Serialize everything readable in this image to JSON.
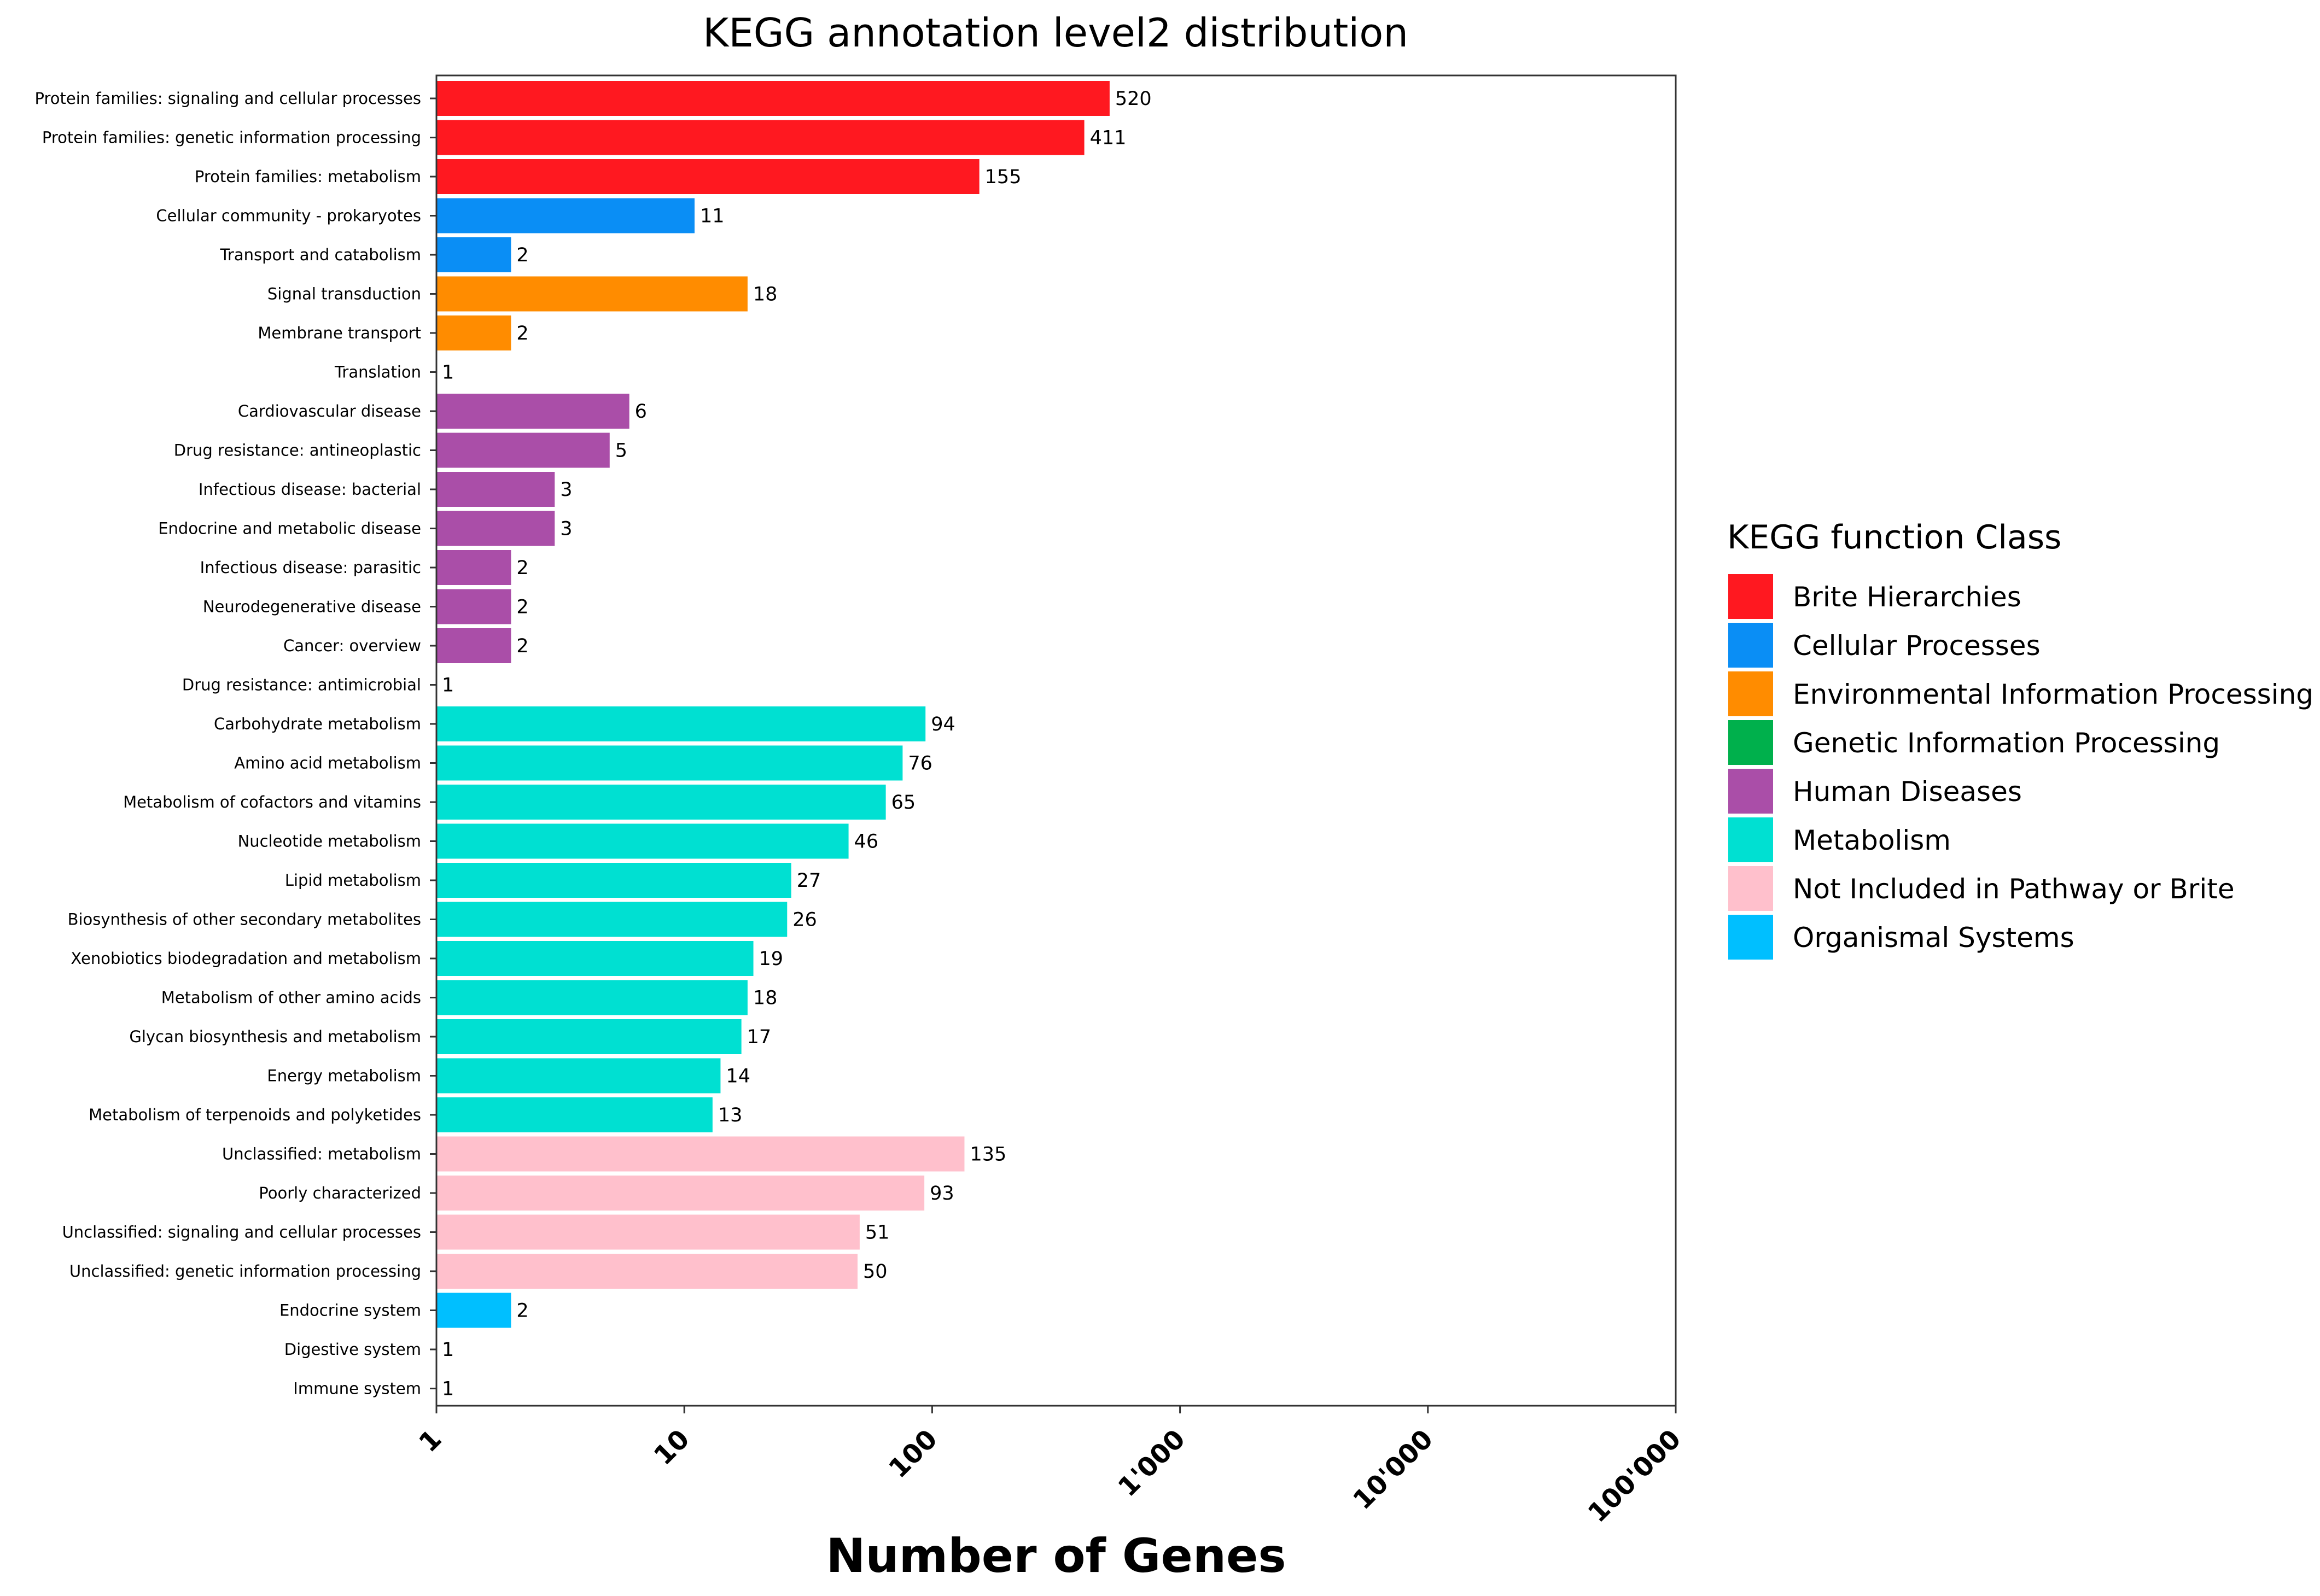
{
  "chart_data": {
    "type": "bar",
    "orientation": "horizontal",
    "title": "KEGG annotation level2 distribution",
    "xlabel": "Number of Genes",
    "ylabel": "",
    "xscale": "log",
    "xlim": [
      1,
      100000
    ],
    "xticks": [
      {
        "value": 1,
        "label": "1"
      },
      {
        "value": 10,
        "label": "10"
      },
      {
        "value": 100,
        "label": "100"
      },
      {
        "value": 1000,
        "label": "1'000"
      },
      {
        "value": 10000,
        "label": "10'000"
      },
      {
        "value": 100000,
        "label": "100'000"
      }
    ],
    "grid": false,
    "legend": {
      "title": "KEGG function Class",
      "placement": "right",
      "entries": [
        {
          "name": "Brite Hierarchies",
          "color": "#FF1820"
        },
        {
          "name": "Cellular Processes",
          "color": "#0A8EF5"
        },
        {
          "name": "Environmental Information Processing",
          "color": "#FF8C00"
        },
        {
          "name": "Genetic Information Processing",
          "color": "#00B04C"
        },
        {
          "name": "Human Diseases",
          "color": "#AA4EA8"
        },
        {
          "name": "Metabolism",
          "color": "#00E0D2"
        },
        {
          "name": "Not Included in Pathway or Brite",
          "color": "#FFC0CC"
        },
        {
          "name": "Organismal Systems",
          "color": "#00BFFF"
        }
      ]
    },
    "bars": [
      {
        "category": "Protein families: signaling and cellular processes",
        "value": 520,
        "class": "Brite Hierarchies"
      },
      {
        "category": "Protein families: genetic information processing",
        "value": 411,
        "class": "Brite Hierarchies"
      },
      {
        "category": "Protein families: metabolism",
        "value": 155,
        "class": "Brite Hierarchies"
      },
      {
        "category": "Cellular community - prokaryotes",
        "value": 11,
        "class": "Cellular Processes"
      },
      {
        "category": "Transport and catabolism",
        "value": 2,
        "class": "Cellular Processes"
      },
      {
        "category": "Signal transduction",
        "value": 18,
        "class": "Environmental Information Processing"
      },
      {
        "category": "Membrane transport",
        "value": 2,
        "class": "Environmental Information Processing"
      },
      {
        "category": "Translation",
        "value": 1,
        "class": "Genetic Information Processing"
      },
      {
        "category": "Cardiovascular disease",
        "value": 6,
        "class": "Human Diseases"
      },
      {
        "category": "Drug resistance: antineoplastic",
        "value": 5,
        "class": "Human Diseases"
      },
      {
        "category": "Infectious disease: bacterial",
        "value": 3,
        "class": "Human Diseases"
      },
      {
        "category": "Endocrine and metabolic disease",
        "value": 3,
        "class": "Human Diseases"
      },
      {
        "category": "Infectious disease: parasitic",
        "value": 2,
        "class": "Human Diseases"
      },
      {
        "category": "Neurodegenerative disease",
        "value": 2,
        "class": "Human Diseases"
      },
      {
        "category": "Cancer: overview",
        "value": 2,
        "class": "Human Diseases"
      },
      {
        "category": "Drug resistance: antimicrobial",
        "value": 1,
        "class": "Human Diseases"
      },
      {
        "category": "Carbohydrate metabolism",
        "value": 94,
        "class": "Metabolism"
      },
      {
        "category": "Amino acid metabolism",
        "value": 76,
        "class": "Metabolism"
      },
      {
        "category": "Metabolism of cofactors and vitamins",
        "value": 65,
        "class": "Metabolism"
      },
      {
        "category": "Nucleotide metabolism",
        "value": 46,
        "class": "Metabolism"
      },
      {
        "category": "Lipid metabolism",
        "value": 27,
        "class": "Metabolism"
      },
      {
        "category": "Biosynthesis of other secondary metabolites",
        "value": 26,
        "class": "Metabolism"
      },
      {
        "category": "Xenobiotics biodegradation and metabolism",
        "value": 19,
        "class": "Metabolism"
      },
      {
        "category": "Metabolism of other amino acids",
        "value": 18,
        "class": "Metabolism"
      },
      {
        "category": "Glycan biosynthesis and metabolism",
        "value": 17,
        "class": "Metabolism"
      },
      {
        "category": "Energy metabolism",
        "value": 14,
        "class": "Metabolism"
      },
      {
        "category": "Metabolism of terpenoids and polyketides",
        "value": 13,
        "class": "Metabolism"
      },
      {
        "category": "Unclassified: metabolism",
        "value": 135,
        "class": "Not Included in Pathway or Brite"
      },
      {
        "category": "Poorly characterized",
        "value": 93,
        "class": "Not Included in Pathway or Brite"
      },
      {
        "category": "Unclassified: signaling and cellular processes",
        "value": 51,
        "class": "Not Included in Pathway or Brite"
      },
      {
        "category": "Unclassified: genetic information processing",
        "value": 50,
        "class": "Not Included in Pathway or Brite"
      },
      {
        "category": "Endocrine system",
        "value": 2,
        "class": "Organismal Systems"
      },
      {
        "category": "Digestive system",
        "value": 1,
        "class": "Organismal Systems"
      },
      {
        "category": "Immune system",
        "value": 1,
        "class": "Organismal Systems"
      }
    ]
  }
}
